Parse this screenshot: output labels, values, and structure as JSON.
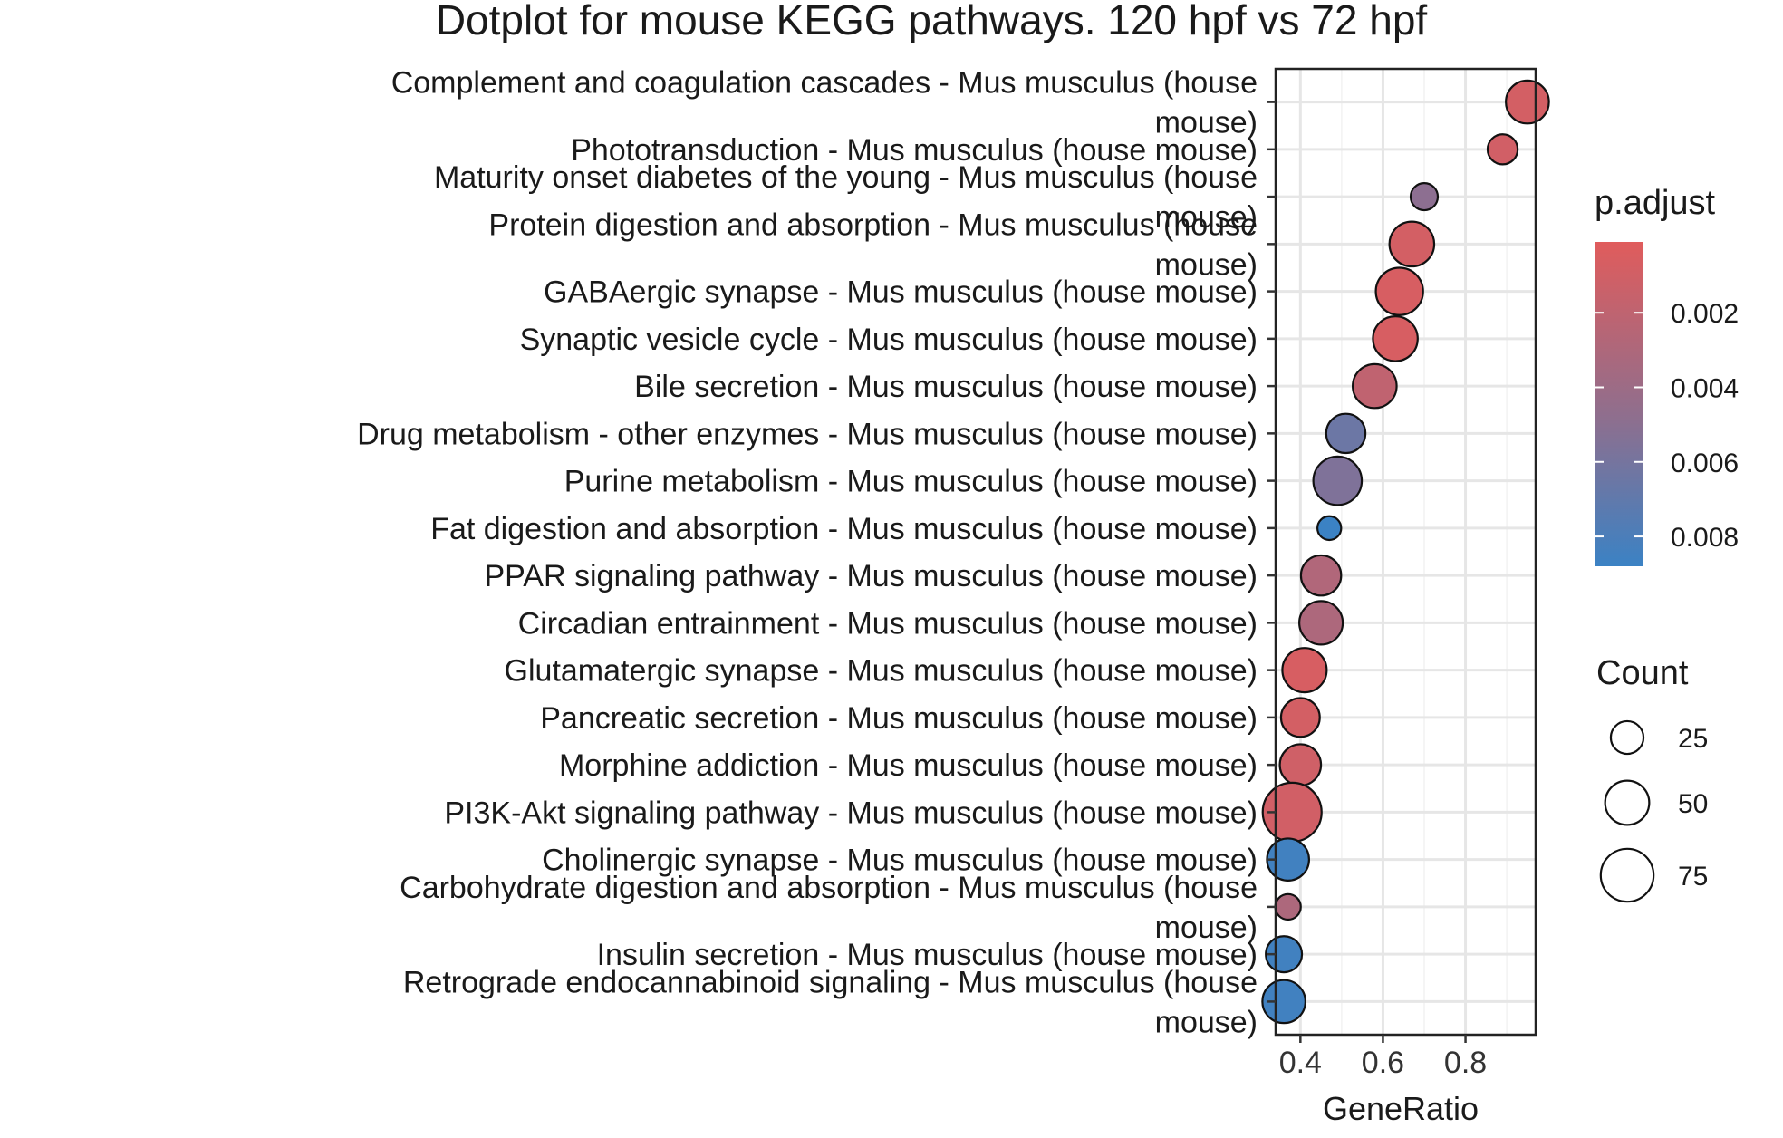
{
  "chart_data": {
    "type": "scatter",
    "title": "Dotplot for mouse KEGG pathways. 120 hpf vs 72 hpf",
    "xlabel": "GeneRatio",
    "ylabel": "",
    "xlim": [
      0.34,
      0.97
    ],
    "xticks": [
      0.4,
      0.6,
      0.8
    ],
    "xtick_labels": [
      "0.4",
      "0.6",
      "0.8"
    ],
    "grid": true,
    "color_scale": {
      "title": "p.adjust",
      "low_color": "#e05c5c",
      "high_color": "#3b82c4",
      "range": [
        0.0001,
        0.0088
      ],
      "ticks": [
        0.002,
        0.004,
        0.006,
        0.008
      ],
      "tick_labels": [
        "0.002",
        "0.004",
        "0.006",
        "0.008"
      ]
    },
    "size_scale": {
      "title": "Count",
      "ticks": [
        25,
        50,
        75
      ],
      "tick_labels": [
        "25",
        "50",
        "75"
      ]
    },
    "legend_position": "right",
    "points": [
      {
        "label": "Complement and coagulation cascades - Mus musculus (house mouse)",
        "gene_ratio": 0.95,
        "p_adjust": 0.0008,
        "count": 42
      },
      {
        "label": "Phototransduction - Mus musculus (house mouse)",
        "gene_ratio": 0.89,
        "p_adjust": 0.0009,
        "count": 18
      },
      {
        "label": "Maturity onset diabetes of the young - Mus musculus (house mouse)",
        "gene_ratio": 0.7,
        "p_adjust": 0.0045,
        "count": 14
      },
      {
        "label": "Protein digestion and absorption - Mus musculus (house mouse)",
        "gene_ratio": 0.67,
        "p_adjust": 0.0008,
        "count": 46
      },
      {
        "label": "GABAergic synapse - Mus musculus (house mouse)",
        "gene_ratio": 0.64,
        "p_adjust": 0.0006,
        "count": 52
      },
      {
        "label": "Synaptic vesicle cycle - Mus musculus (house mouse)",
        "gene_ratio": 0.63,
        "p_adjust": 0.0006,
        "count": 46
      },
      {
        "label": "Bile secretion - Mus musculus (house mouse)",
        "gene_ratio": 0.58,
        "p_adjust": 0.0018,
        "count": 44
      },
      {
        "label": "Drug metabolism - other enzymes - Mus musculus (house mouse)",
        "gene_ratio": 0.51,
        "p_adjust": 0.0062,
        "count": 34
      },
      {
        "label": "Purine metabolism - Mus musculus (house mouse)",
        "gene_ratio": 0.49,
        "p_adjust": 0.0052,
        "count": 55
      },
      {
        "label": "Fat digestion and absorption - Mus musculus (house mouse)",
        "gene_ratio": 0.47,
        "p_adjust": 0.0088,
        "count": 10
      },
      {
        "label": "PPAR signaling pathway - Mus musculus (house mouse)",
        "gene_ratio": 0.45,
        "p_adjust": 0.0026,
        "count": 36
      },
      {
        "label": "Circadian entrainment - Mus musculus (house mouse)",
        "gene_ratio": 0.45,
        "p_adjust": 0.0028,
        "count": 43
      },
      {
        "label": "Glutamatergic synapse - Mus musculus (house mouse)",
        "gene_ratio": 0.41,
        "p_adjust": 0.0006,
        "count": 45
      },
      {
        "label": "Pancreatic secretion - Mus musculus (house mouse)",
        "gene_ratio": 0.4,
        "p_adjust": 0.0008,
        "count": 33
      },
      {
        "label": "Morphine addiction - Mus musculus (house mouse)",
        "gene_ratio": 0.4,
        "p_adjust": 0.001,
        "count": 38
      },
      {
        "label": "PI3K-Akt signaling pathway - Mus musculus (house mouse)",
        "gene_ratio": 0.38,
        "p_adjust": 0.0009,
        "count": 85
      },
      {
        "label": "Cholinergic synapse - Mus musculus (house mouse)",
        "gene_ratio": 0.37,
        "p_adjust": 0.0085,
        "count": 40
      },
      {
        "label": "Carbohydrate digestion and absorption - Mus musculus (house mouse)",
        "gene_ratio": 0.37,
        "p_adjust": 0.0028,
        "count": 12
      },
      {
        "label": "Insulin secretion - Mus musculus (house mouse)",
        "gene_ratio": 0.36,
        "p_adjust": 0.0085,
        "count": 28
      },
      {
        "label": "Retrograde endocannabinoid signaling - Mus musculus (house mouse)",
        "gene_ratio": 0.36,
        "p_adjust": 0.0085,
        "count": 42
      }
    ],
    "label_lines": [
      [
        "Complement and coagulation cascades - Mus musculus (house",
        "mouse)"
      ],
      [
        "Phototransduction - Mus musculus (house mouse)"
      ],
      [
        "Maturity onset diabetes of the young - Mus musculus (house",
        "mouse)"
      ],
      [
        "Protein digestion and absorption - Mus musculus (house",
        "mouse)"
      ],
      [
        "GABAergic synapse - Mus musculus (house mouse)"
      ],
      [
        "Synaptic vesicle cycle - Mus musculus (house mouse)"
      ],
      [
        "Bile secretion - Mus musculus (house mouse)"
      ],
      [
        "Drug metabolism - other enzymes - Mus musculus (house mouse)"
      ],
      [
        "Purine metabolism - Mus musculus (house mouse)"
      ],
      [
        "Fat digestion and absorption - Mus musculus (house mouse)"
      ],
      [
        "PPAR signaling pathway - Mus musculus (house mouse)"
      ],
      [
        "Circadian entrainment - Mus musculus (house mouse)"
      ],
      [
        "Glutamatergic synapse - Mus musculus (house mouse)"
      ],
      [
        "Pancreatic secretion - Mus musculus (house mouse)"
      ],
      [
        "Morphine addiction - Mus musculus (house mouse)"
      ],
      [
        "PI3K-Akt signaling pathway - Mus musculus (house mouse)"
      ],
      [
        "Cholinergic synapse - Mus musculus (house mouse)"
      ],
      [
        "Carbohydrate digestion and absorption - Mus musculus (house",
        "mouse)"
      ],
      [
        "Insulin secretion - Mus musculus (house mouse)"
      ],
      [
        "Retrograde endocannabinoid signaling - Mus musculus (house",
        "mouse)"
      ]
    ]
  }
}
